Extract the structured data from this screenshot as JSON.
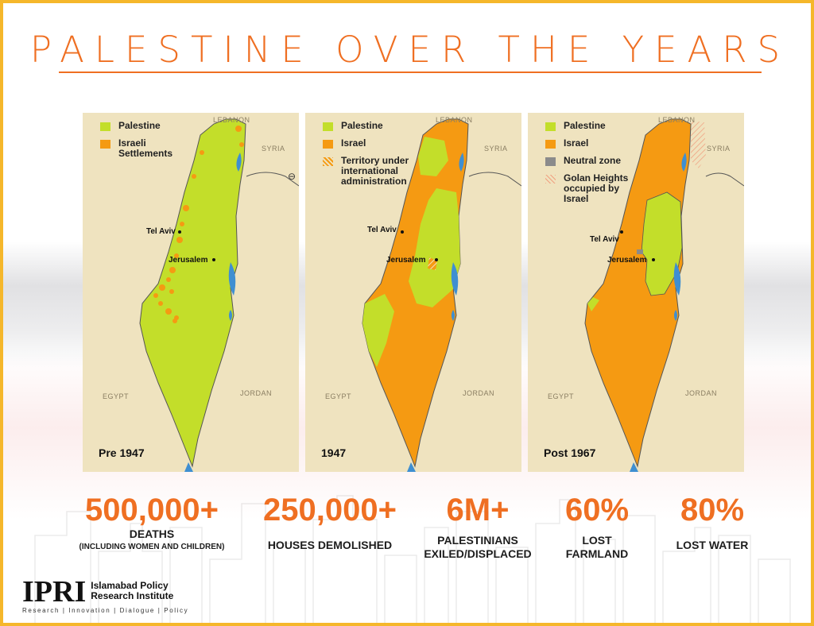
{
  "title": "PALESTINE OVER THE YEARS",
  "colors": {
    "palestine": "#c3de2a",
    "israel": "#f59a12",
    "neutral": "#8b8b8b",
    "land": "#efe3bf",
    "water": "#3f8fd1",
    "accent": "#ef6f22",
    "border": "#f5b72b"
  },
  "maps": [
    {
      "period": "Pre 1947",
      "legend": [
        {
          "label": "Palestine",
          "swatch": "palestine"
        },
        {
          "label": "Israeli\nSettlements",
          "swatch": "israel"
        }
      ],
      "countries": {
        "lebanon": "LEBANON",
        "syria": "SYRIA",
        "egypt": "EGYPT",
        "jordan": "JORDAN"
      },
      "cities": {
        "tel_aviv": "Tel Aviv",
        "jerusalem": "Jerusalem"
      }
    },
    {
      "period": "1947",
      "legend": [
        {
          "label": "Palestine",
          "swatch": "palestine"
        },
        {
          "label": "Israel",
          "swatch": "israel"
        },
        {
          "label": "Territory under\ninternational\nadministration",
          "swatch": "hatch"
        }
      ],
      "countries": {
        "lebanon": "LEBANON",
        "syria": "SYRIA",
        "egypt": "EGYPT",
        "jordan": "JORDAN"
      },
      "cities": {
        "tel_aviv": "Tel Aviv",
        "jerusalem": "Jerusalem"
      }
    },
    {
      "period": "Post 1967",
      "legend": [
        {
          "label": "Palestine",
          "swatch": "palestine"
        },
        {
          "label": "Israel",
          "swatch": "israel"
        },
        {
          "label": "Neutral zone",
          "swatch": "neutral"
        },
        {
          "label": "Golan Heights\noccupied by\nIsrael",
          "swatch": "golan"
        }
      ],
      "countries": {
        "lebanon": "LEBANON",
        "syria": "SYRIA",
        "egypt": "EGYPT",
        "jordan": "JORDAN"
      },
      "cities": {
        "tel_aviv": "Tel Aviv",
        "jerusalem": "Jerusalem"
      }
    }
  ],
  "stats": [
    {
      "value": "500,000+",
      "label": "DEATHS",
      "sub": "(INCLUDING WOMEN AND CHILDREN)"
    },
    {
      "value": "250,000+",
      "label": "HOUSES DEMOLISHED"
    },
    {
      "value": "6M+",
      "label": "PALESTINIANS\nEXILED/DISPLACED"
    },
    {
      "value": "60%",
      "label": "LOST\nFARMLAND"
    },
    {
      "value": "80%",
      "label": "LOST WATER"
    }
  ],
  "logo": {
    "acronym": "IPRI",
    "name": "Islamabad Policy\nResearch Institute",
    "tagline": "Research | Innovation | Dialogue | Policy"
  }
}
